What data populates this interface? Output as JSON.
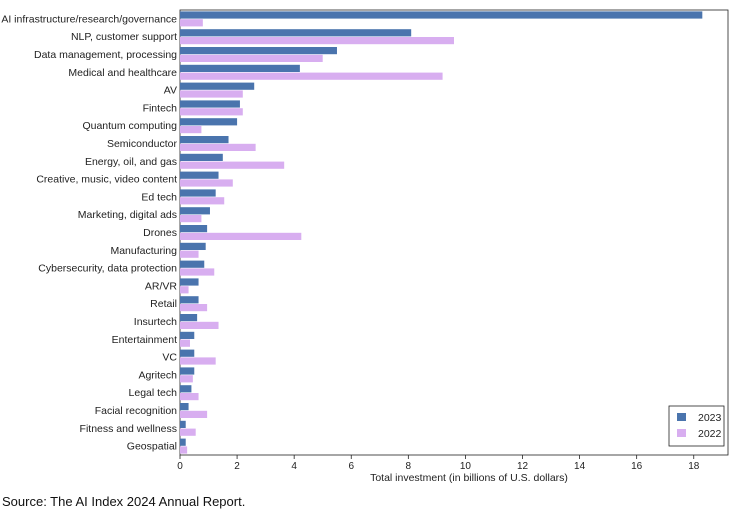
{
  "chart_data": {
    "type": "bar",
    "orientation": "horizontal",
    "categories": [
      "AI infrastructure/research/governance",
      "NLP, customer support",
      "Data management, processing",
      "Medical and healthcare",
      "AV",
      "Fintech",
      "Quantum computing",
      "Semiconductor",
      "Energy, oil, and gas",
      "Creative, music, video content",
      "Ed tech",
      "Marketing, digital ads",
      "Drones",
      "Manufacturing",
      "Cybersecurity, data protection",
      "AR/VR",
      "Retail",
      "Insurtech",
      "Entertainment",
      "VC",
      "Agritech",
      "Legal tech",
      "Facial recognition",
      "Fitness and wellness",
      "Geospatial"
    ],
    "series": [
      {
        "name": "2023",
        "color": "#4a74ad",
        "values": [
          18.3,
          8.1,
          5.5,
          4.2,
          2.6,
          2.1,
          2.0,
          1.7,
          1.5,
          1.35,
          1.25,
          1.05,
          0.95,
          0.9,
          0.85,
          0.65,
          0.65,
          0.6,
          0.5,
          0.5,
          0.5,
          0.4,
          0.3,
          0.2,
          0.2
        ]
      },
      {
        "name": "2022",
        "color": "#d8aef0",
        "values": [
          0.8,
          9.6,
          5.0,
          9.2,
          2.2,
          2.2,
          0.75,
          2.65,
          3.65,
          1.85,
          1.55,
          0.75,
          4.25,
          0.65,
          1.2,
          0.3,
          0.95,
          1.35,
          0.35,
          1.25,
          0.45,
          0.65,
          0.95,
          0.55,
          0.25
        ]
      }
    ],
    "xlabel": "Total investment (in billions of U.S. dollars)",
    "ylabel": "",
    "xlim": [
      0,
      19.2
    ],
    "xticks": [
      0,
      2,
      4,
      6,
      8,
      10,
      12,
      14,
      16,
      18
    ],
    "grid": false,
    "legend_position": "bottom-right"
  },
  "footer": {
    "source": "Source: The AI Index 2024 Annual Report."
  }
}
